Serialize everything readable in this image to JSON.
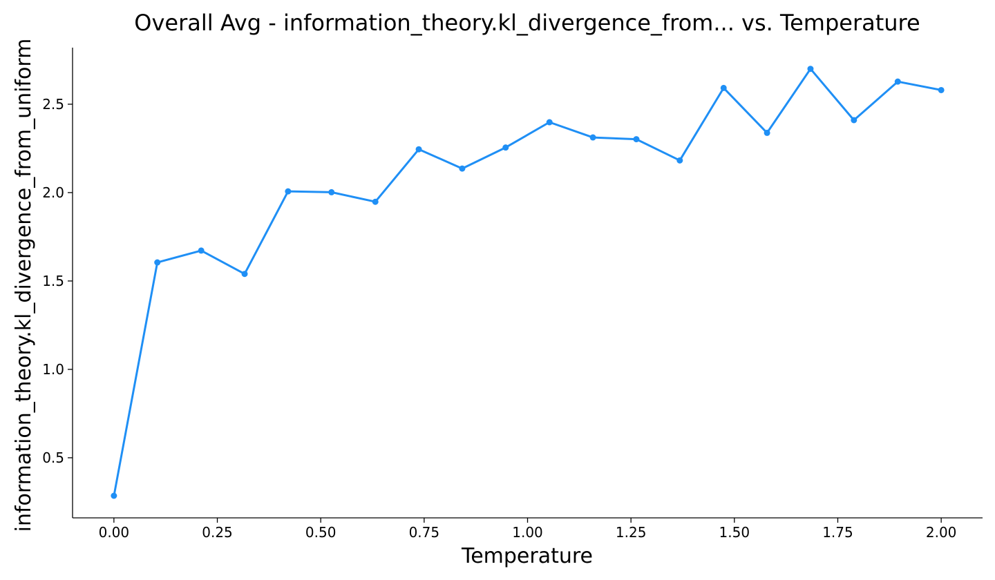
{
  "chart_data": {
    "type": "line",
    "title": "Overall Avg - information_theory.kl_divergence_from... vs. Temperature",
    "xlabel": "Temperature",
    "ylabel": "information_theory.kl_divergence_from_uniform",
    "xlim": [
      -0.1,
      2.1
    ],
    "ylim": [
      0.16,
      2.82
    ],
    "xticks": [
      0.0,
      0.25,
      0.5,
      0.75,
      1.0,
      1.25,
      1.5,
      1.75,
      2.0
    ],
    "xtick_labels": [
      "0.00",
      "0.25",
      "0.50",
      "0.75",
      "1.00",
      "1.25",
      "1.50",
      "1.75",
      "2.00"
    ],
    "yticks": [
      0.5,
      1.0,
      1.5,
      2.0,
      2.5
    ],
    "ytick_labels": [
      "0.5",
      "1.0",
      "1.5",
      "2.0",
      "2.5"
    ],
    "grid": false,
    "color": "#1f8ff5",
    "series": [
      {
        "x": [
          0.0,
          0.105,
          0.211,
          0.316,
          0.421,
          0.526,
          0.632,
          0.737,
          0.842,
          0.947,
          1.053,
          1.158,
          1.263,
          1.368,
          1.474,
          1.579,
          1.684,
          1.789,
          1.895,
          2.0
        ],
        "values": [
          0.285,
          1.605,
          1.672,
          1.54,
          2.007,
          2.002,
          1.948,
          2.245,
          2.136,
          2.255,
          2.398,
          2.312,
          2.302,
          2.182,
          2.592,
          2.338,
          2.7,
          2.41,
          2.628,
          2.58
        ]
      }
    ]
  }
}
